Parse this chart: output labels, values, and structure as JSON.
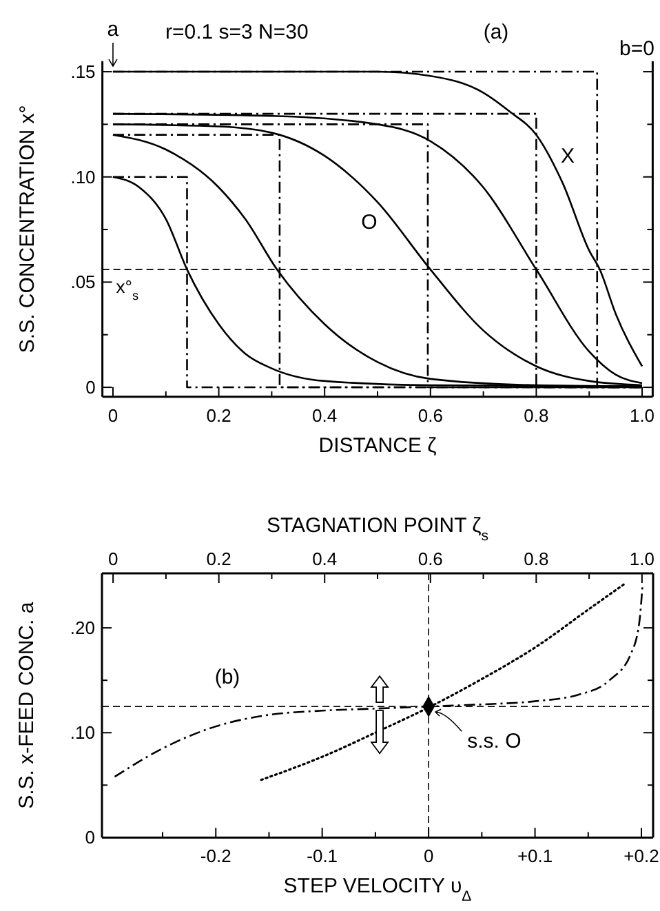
{
  "chart_data": [
    {
      "type": "line",
      "xlabel": "DISTANCE  ζ",
      "ylabel": "S.S. CONCENTRATION  x°",
      "xlim": [
        -0.02,
        1.02
      ],
      "ylim": [
        -0.0045,
        0.155
      ],
      "xticks": [
        0,
        {
          "value": 0.1,
          "label": null
        },
        0.2,
        {
          "value": 0.3,
          "label": null
        },
        0.4,
        {
          "value": 0.5,
          "label": null
        },
        0.6,
        {
          "value": 0.7,
          "label": null
        },
        0.8,
        {
          "value": 0.9,
          "label": null
        },
        {
          "value": 1.0,
          "label": "1.0"
        }
      ],
      "yticks": [
        0,
        {
          "value": 0.025,
          "label": null
        },
        {
          "value": 0.05,
          "label": ".05"
        },
        {
          "value": 0.075,
          "label": null
        },
        {
          "value": 0.1,
          "label": ".10"
        },
        {
          "value": 0.125,
          "label": null
        },
        {
          "value": 0.15,
          "label": ".15"
        }
      ],
      "series": [
        {
          "color": "#000000",
          "line_style": "solid",
          "x": [
            0,
            0.05,
            0.1,
            0.14,
            0.2,
            0.25,
            0.3,
            0.4,
            0.6,
            1.0
          ],
          "values": [
            0.1,
            0.095,
            0.08,
            0.056,
            0.03,
            0.016,
            0.009,
            0.003,
            0.001,
            0.0005
          ]
        },
        {
          "color": "#000000",
          "line_style": "solid",
          "x": [
            0,
            0.1,
            0.2,
            0.25,
            0.31,
            0.4,
            0.5,
            0.6,
            0.8,
            1.0
          ],
          "values": [
            0.12,
            0.113,
            0.095,
            0.08,
            0.056,
            0.03,
            0.012,
            0.004,
            0.001,
            0.0005
          ]
        },
        {
          "color": "#000000",
          "line_style": "solid",
          "x": [
            0,
            0.2,
            0.3,
            0.4,
            0.5,
            0.6,
            0.7,
            0.8,
            0.9,
            1.0
          ],
          "values": [
            0.125,
            0.124,
            0.121,
            0.11,
            0.088,
            0.056,
            0.027,
            0.01,
            0.003,
            0.001
          ]
        },
        {
          "color": "#000000",
          "line_style": "solid",
          "x": [
            0,
            0.3,
            0.5,
            0.6,
            0.7,
            0.8,
            0.9,
            0.95,
            1.0
          ],
          "values": [
            0.13,
            0.129,
            0.125,
            0.117,
            0.095,
            0.056,
            0.017,
            0.006,
            0.002
          ]
        },
        {
          "color": "#000000",
          "line_style": "solid",
          "x": [
            0,
            0.5,
            0.6,
            0.7,
            0.75,
            0.8,
            0.85,
            0.9,
            0.92,
            0.95,
            1.0
          ],
          "values": [
            0.15,
            0.15,
            0.148,
            0.14,
            0.131,
            0.12,
            0.097,
            0.065,
            0.056,
            0.035,
            0.01
          ]
        },
        {
          "color": "#000000",
          "line_style": "dashed",
          "x": [
            0,
            0.14,
            0.14,
            1.0
          ],
          "values": [
            0.1,
            0.1,
            0,
            0
          ]
        },
        {
          "color": "#000000",
          "line_style": "dashed",
          "x": [
            0,
            0.315,
            0.315,
            1.0
          ],
          "values": [
            0.12,
            0.12,
            0,
            0
          ]
        },
        {
          "color": "#000000",
          "line_style": "dashed",
          "x": [
            0,
            0.595,
            0.595,
            1.0
          ],
          "values": [
            0.125,
            0.125,
            0,
            0
          ]
        },
        {
          "color": "#000000",
          "line_style": "dashed",
          "x": [
            0,
            0.8,
            0.8,
            1.0
          ],
          "values": [
            0.13,
            0.13,
            0,
            0
          ]
        },
        {
          "color": "#000000",
          "line_style": "dashed",
          "x": [
            0,
            0.915,
            0.915,
            1.0
          ],
          "values": [
            0.15,
            0.15,
            0,
            0
          ]
        }
      ],
      "ref_lines": [
        {
          "axis": "y",
          "value": 0.056,
          "label": "x°$_{s}$",
          "line_style": "dashed"
        }
      ],
      "annotations": [
        "r=0.1  s=3  N=30",
        "(a)",
        "b=0",
        {
          "text": "a",
          "x": 0,
          "y": 0.15
        },
        "X",
        "O"
      ]
    },
    {
      "type": "line",
      "xlabel": "STEP VELOCITY  υ$_{Δ}$",
      "x2label": "STAGNATION POINT  ζ$_{s}$",
      "ylabel": "S.S. x-FEED CONC.  a",
      "xlim": [
        -0.307,
        0.211
      ],
      "x2lim": [
        -0.021,
        1.021
      ],
      "ylim": [
        0,
        0.252
      ],
      "xticks": [
        {
          "value": -0.25,
          "label": null
        },
        -0.2,
        {
          "value": -0.15,
          "label": null
        },
        -0.1,
        {
          "value": -0.05,
          "label": null
        },
        0,
        {
          "value": 0.05,
          "label": null
        },
        {
          "value": 0.1,
          "label": "+0.1"
        },
        {
          "value": 0.15,
          "label": null
        },
        {
          "value": 0.2,
          "label": "+0.2"
        }
      ],
      "x2ticks": [
        0,
        {
          "value": 0.1,
          "label": null
        },
        0.2,
        {
          "value": 0.3,
          "label": null
        },
        0.4,
        {
          "value": 0.5,
          "label": null
        },
        0.6,
        {
          "value": 0.7,
          "label": null
        },
        0.8,
        {
          "value": 0.9,
          "label": null
        },
        {
          "value": 1.0,
          "label": "1.0"
        }
      ],
      "yticks": [
        0,
        {
          "value": 0.05,
          "label": null
        },
        {
          "value": 0.1,
          "label": ".10"
        },
        {
          "value": 0.15,
          "label": null
        },
        {
          "value": 0.2,
          "label": ".20"
        }
      ],
      "series": [
        {
          "color": "#000000",
          "line_style": "dashed",
          "x": [
            -0.295,
            -0.25,
            -0.2,
            -0.15,
            -0.1,
            -0.05,
            0,
            0.05,
            0.1,
            0.14,
            0.17,
            0.19,
            0.198,
            0.201
          ],
          "values": [
            0.058,
            0.085,
            0.106,
            0.117,
            0.121,
            0.123,
            0.125,
            0.127,
            0.13,
            0.136,
            0.15,
            0.175,
            0.205,
            0.24
          ]
        },
        {
          "color": "#000000",
          "line_style": "dotted",
          "axis": "x2",
          "x": [
            0.28,
            0.4,
            0.5,
            0.6,
            0.7,
            0.8,
            0.9,
            0.97
          ],
          "values": [
            0.055,
            0.078,
            0.101,
            0.125,
            0.152,
            0.182,
            0.218,
            0.243
          ]
        },
        {
          "type": "scatter",
          "color": "#000000",
          "marker": "diamond",
          "x": [
            0
          ],
          "values": [
            0.125
          ]
        }
      ],
      "ref_lines": [
        {
          "axis": "y",
          "value": 0.125,
          "line_style": "dashed"
        },
        {
          "axis": "x",
          "value": 0,
          "line_style": "dashed"
        }
      ],
      "annotations": [
        "(b)",
        {
          "text": "s.s. O",
          "x": 0,
          "y": 0.125
        }
      ]
    }
  ]
}
